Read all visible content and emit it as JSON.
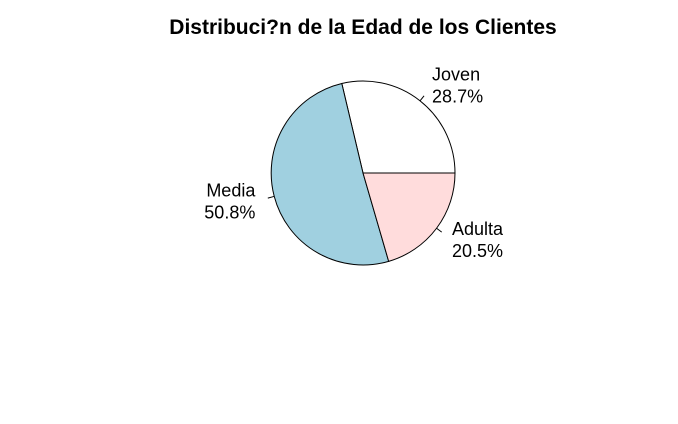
{
  "chart_data": {
    "type": "pie",
    "title": "Distribuci?n de la Edad de los Clientes",
    "start_angle_deg": 0,
    "direction": "counterclockwise",
    "slices": [
      {
        "name": "Joven",
        "value": 28.7,
        "percent_label": "28.7%",
        "color": "#ffffff"
      },
      {
        "name": "Media",
        "value": 50.8,
        "percent_label": "50.8%",
        "color": "#a0d0e0"
      },
      {
        "name": "Adulta",
        "value": 20.5,
        "percent_label": "20.5%",
        "color": "#ffdcdc"
      }
    ]
  }
}
